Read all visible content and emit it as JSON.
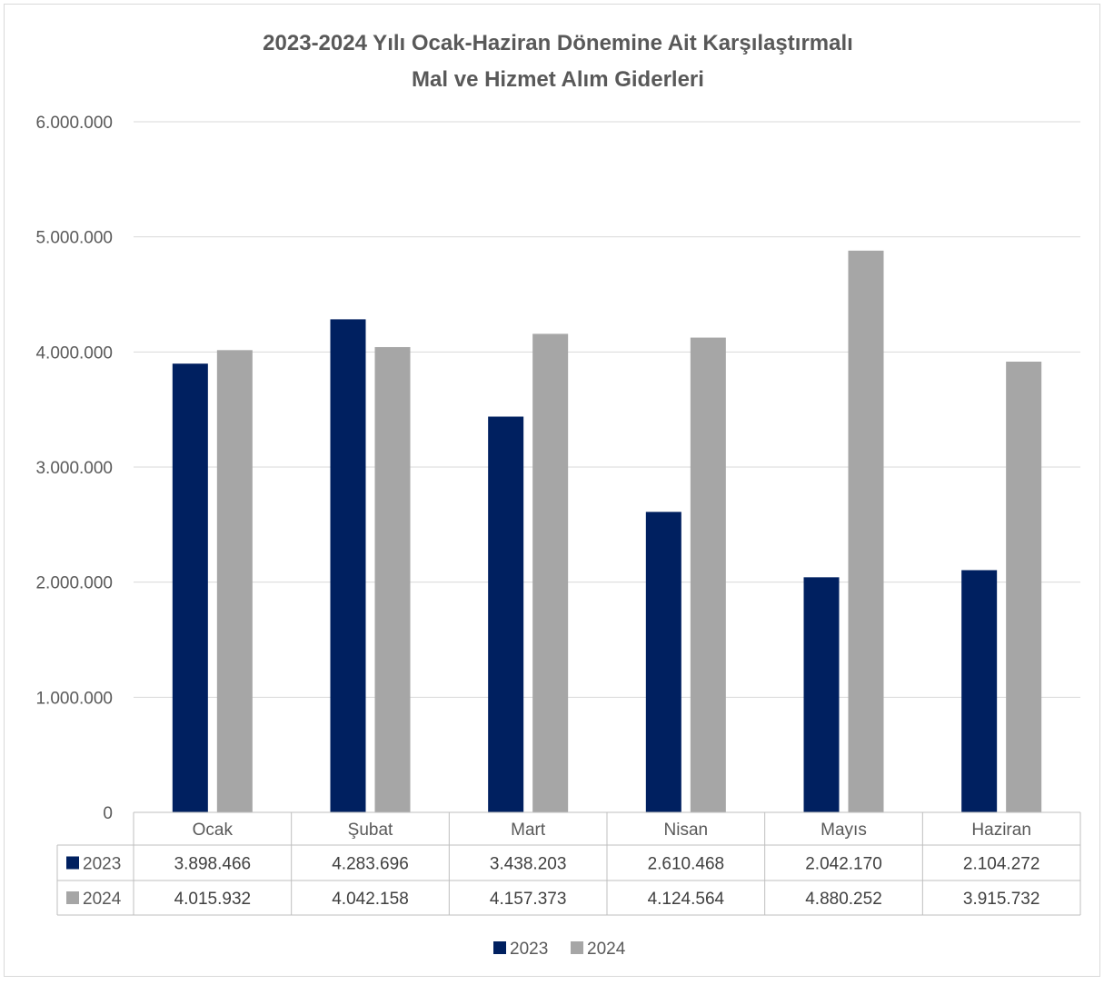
{
  "chart_data": {
    "type": "bar",
    "title_lines": [
      "2023-2024 Yılı Ocak-Haziran Dönemine Ait Karşılaştırmalı",
      "Mal ve Hizmet Alım Giderleri"
    ],
    "categories": [
      "Ocak",
      "Şubat",
      "Mart",
      "Nisan",
      "Mayıs",
      "Haziran"
    ],
    "series": [
      {
        "name": "2023",
        "color": "#002060",
        "values": [
          3898466,
          4283696,
          3438203,
          2610468,
          2042170,
          2104272
        ],
        "labels": [
          "3.898.466",
          "4.283.696",
          "3.438.203",
          "2.610.468",
          "2.042.170",
          "2.104.272"
        ]
      },
      {
        "name": "2024",
        "color": "#a6a6a6",
        "values": [
          4015932,
          4042158,
          4157373,
          4124564,
          4880252,
          3915732
        ],
        "labels": [
          "4.015.932",
          "4.042.158",
          "4.157.373",
          "4.124.564",
          "4.880.252",
          "3.915.732"
        ]
      }
    ],
    "ylim": [
      0,
      6000000
    ],
    "yticks": [
      0,
      1000000,
      2000000,
      3000000,
      4000000,
      5000000,
      6000000
    ],
    "ytick_labels": [
      "0",
      "1.000.000",
      "2.000.000",
      "3.000.000",
      "4.000.000",
      "5.000.000",
      "6.000.000"
    ],
    "grid": true,
    "data_table": true,
    "legend_position": "bottom"
  }
}
